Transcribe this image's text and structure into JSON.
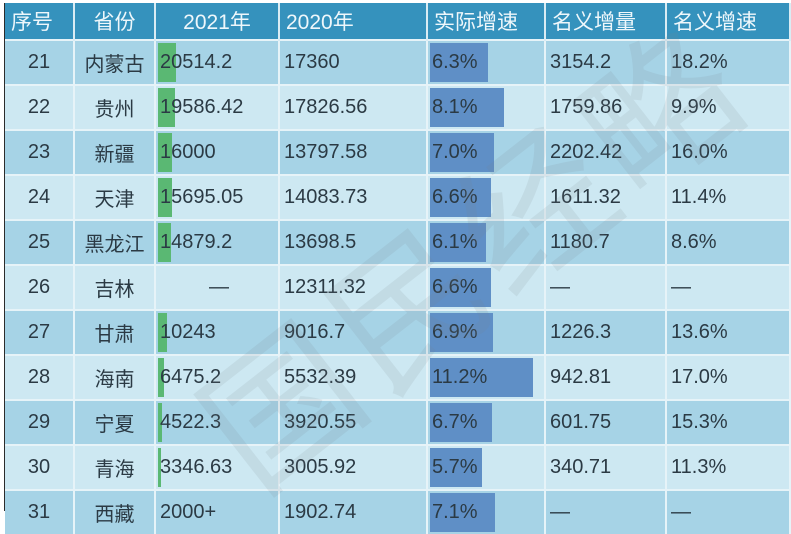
{
  "table": {
    "headers": [
      "序号",
      "省份",
      "2021年",
      "2020年",
      "实际增速",
      "名义增量",
      "名义增速"
    ],
    "rows": [
      {
        "rank": "21",
        "province": "内蒙古",
        "gdp2021": "20514.2",
        "gdp2020": "17360",
        "real_growth": "6.3%",
        "nominal_increase": "3154.2",
        "nominal_growth": "18.2%",
        "bar2021": 20514.2,
        "bar_real": 6.3
      },
      {
        "rank": "22",
        "province": "贵州",
        "gdp2021": "19586.42",
        "gdp2020": "17826.56",
        "real_growth": "8.1%",
        "nominal_increase": "1759.86",
        "nominal_growth": "9.9%",
        "bar2021": 19586.42,
        "bar_real": 8.1
      },
      {
        "rank": "23",
        "province": "新疆",
        "gdp2021": "16000",
        "gdp2020": "13797.58",
        "real_growth": "7.0%",
        "nominal_increase": "2202.42",
        "nominal_growth": "16.0%",
        "bar2021": 16000,
        "bar_real": 7.0
      },
      {
        "rank": "24",
        "province": "天津",
        "gdp2021": "15695.05",
        "gdp2020": "14083.73",
        "real_growth": "6.6%",
        "nominal_increase": "1611.32",
        "nominal_growth": "11.4%",
        "bar2021": 15695.05,
        "bar_real": 6.6
      },
      {
        "rank": "25",
        "province": "黑龙江",
        "gdp2021": "14879.2",
        "gdp2020": "13698.5",
        "real_growth": "6.1%",
        "nominal_increase": "1180.7",
        "nominal_growth": "8.6%",
        "bar2021": 14879.2,
        "bar_real": 6.1
      },
      {
        "rank": "26",
        "province": "吉林",
        "gdp2021": "—",
        "gdp2020": "12311.32",
        "real_growth": "6.6%",
        "nominal_increase": "—",
        "nominal_growth": "—",
        "bar2021": 0,
        "bar_real": 6.6
      },
      {
        "rank": "27",
        "province": "甘肃",
        "gdp2021": "10243",
        "gdp2020": "9016.7",
        "real_growth": "6.9%",
        "nominal_increase": "1226.3",
        "nominal_growth": "13.6%",
        "bar2021": 10243,
        "bar_real": 6.9
      },
      {
        "rank": "28",
        "province": "海南",
        "gdp2021": "6475.2",
        "gdp2020": "5532.39",
        "real_growth": "11.2%",
        "nominal_increase": "942.81",
        "nominal_growth": "17.0%",
        "bar2021": 6475.2,
        "bar_real": 11.2
      },
      {
        "rank": "29",
        "province": "宁夏",
        "gdp2021": "4522.3",
        "gdp2020": "3920.55",
        "real_growth": "6.7%",
        "nominal_increase": "601.75",
        "nominal_growth": "15.3%",
        "bar2021": 4522.3,
        "bar_real": 6.7
      },
      {
        "rank": "30",
        "province": "青海",
        "gdp2021": "3346.63",
        "gdp2020": "3005.92",
        "real_growth": "5.7%",
        "nominal_increase": "340.71",
        "nominal_growth": "11.3%",
        "bar2021": 3346.63,
        "bar_real": 5.7
      },
      {
        "rank": "31",
        "province": "西藏",
        "gdp2021": "2000+",
        "gdp2020": "1902.74",
        "real_growth": "7.1%",
        "nominal_increase": "—",
        "nominal_growth": "—",
        "bar2021": 0,
        "bar_real": 7.1
      }
    ]
  },
  "watermark": "国民经略",
  "colors": {
    "header_bg": "#3592bd",
    "row_dark": "#a6d3e6",
    "row_light": "#cde8f2",
    "bar_green": "#5ab873",
    "bar_blue": "#5f8fc6"
  }
}
